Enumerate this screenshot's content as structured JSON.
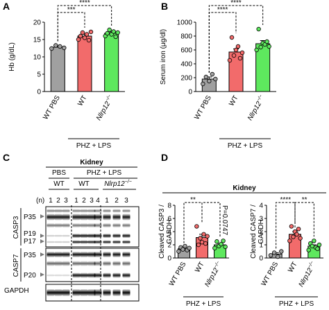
{
  "panels": {
    "a": {
      "letter": "A"
    },
    "b": {
      "letter": "B"
    },
    "c": {
      "letter": "C"
    },
    "d": {
      "letter": "D"
    }
  },
  "common": {
    "wt_pbs": "WT PBS",
    "wt": "WT",
    "nlrp_base": "Nlrp12",
    "nlrp_sup": "−/−",
    "phz_lps": "PHZ + LPS",
    "pbs": "PBS",
    "kidney": "Kidney",
    "sig3": "***",
    "sig4": "****",
    "sig2": "**"
  },
  "colors": {
    "wt_pbs": "#a0a0a0",
    "wt": "#f26b6b",
    "nlrp12": "#5ee85e",
    "error": "#000000"
  },
  "blot": {
    "n_label": "(n)",
    "lanes": [
      "1",
      "2",
      "3",
      "1",
      "2",
      "3",
      "4",
      "1",
      "2",
      "3"
    ],
    "proteins": [
      "CASP3",
      "CASP7",
      "GAPDH"
    ],
    "bands": [
      "P35",
      "P19",
      "P17",
      "P35",
      "P20"
    ]
  },
  "chart_data": [
    {
      "id": "A",
      "type": "bar",
      "categories": [
        "WT PBS",
        "WT",
        "Nlrp12−/−"
      ],
      "ylabel": "Hb (g/dL)",
      "ylim": [
        0,
        20
      ],
      "yticks": [
        0,
        5,
        10,
        15,
        20
      ],
      "values": [
        12.8,
        16.0,
        16.8
      ],
      "errors": [
        0.5,
        0.5,
        0.4
      ],
      "points": [
        [
          12.4,
          13.3,
          13.0,
          12.6
        ],
        [
          15.0,
          16.0,
          17.0,
          15.5,
          16.5,
          14.8,
          17.2
        ],
        [
          16.0,
          16.8,
          17.8,
          16.5,
          17.3,
          15.8,
          17.0
        ]
      ],
      "significance": [
        {
          "from": 0,
          "to": 1,
          "label": "***"
        },
        {
          "from": 0,
          "to": 2,
          "label": "****"
        }
      ]
    },
    {
      "id": "B",
      "type": "bar",
      "categories": [
        "WT PBS",
        "WT",
        "Nlrp12−/−"
      ],
      "ylabel": "Serum iron (μg/dl)",
      "ylim": [
        0,
        1000
      ],
      "yticks": [
        0,
        200,
        400,
        600,
        800,
        1000
      ],
      "values": [
        180,
        570,
        690
      ],
      "errors": [
        30,
        45,
        45
      ],
      "points": [
        [
          110,
          210,
          150,
          250,
          180
        ],
        [
          450,
          780,
          520,
          600,
          650,
          480,
          560
        ],
        [
          600,
          900,
          640,
          700,
          680,
          720,
          650
        ]
      ],
      "significance": [
        {
          "from": 0,
          "to": 1,
          "label": "****"
        },
        {
          "from": 0,
          "to": 2,
          "label": "****"
        }
      ]
    },
    {
      "id": "D1",
      "type": "bar",
      "categories": [
        "WT PBS",
        "WT",
        "Nlrp12−/−"
      ],
      "ylabel_lines": [
        "Cleaved CASP3 /",
        "GAPDH"
      ],
      "ylim": [
        0,
        8
      ],
      "yticks": [
        0,
        2,
        4,
        6,
        8
      ],
      "values": [
        1.4,
        3.1,
        2.0
      ],
      "errors": [
        0.2,
        0.5,
        0.2
      ],
      "points": [
        [
          1.0,
          1.6,
          1.3,
          1.8,
          1.2,
          1.5
        ],
        [
          4.8,
          2.0,
          3.0,
          2.4,
          3.6,
          2.2,
          3.3
        ],
        [
          1.5,
          2.5,
          1.8,
          2.1,
          2.6,
          1.7
        ]
      ],
      "significance": [
        {
          "from": 0,
          "to": 1,
          "label": "**"
        },
        {
          "from": 1,
          "to": 2,
          "label": "P=0.0747"
        }
      ]
    },
    {
      "id": "D2",
      "type": "bar",
      "categories": [
        "WT PBS",
        "WT",
        "Nlrp12−/−"
      ],
      "ylabel_lines": [
        "Cleaved CASP7 /",
        "GAPDH"
      ],
      "ylim": [
        0,
        4
      ],
      "yticks": [
        0,
        1,
        2,
        3,
        4
      ],
      "values": [
        0.3,
        1.8,
        0.9
      ],
      "errors": [
        0.1,
        0.2,
        0.1
      ],
      "points": [
        [
          0.2,
          0.4,
          0.1,
          0.5
        ],
        [
          1.3,
          2.4,
          1.6,
          2.0,
          1.8,
          2.2,
          1.5
        ],
        [
          0.6,
          1.1,
          0.9,
          1.3,
          0.8,
          0.7,
          1.0
        ]
      ],
      "significance": [
        {
          "from": 0,
          "to": 1,
          "label": "****"
        },
        {
          "from": 1,
          "to": 2,
          "label": "**"
        }
      ]
    }
  ]
}
